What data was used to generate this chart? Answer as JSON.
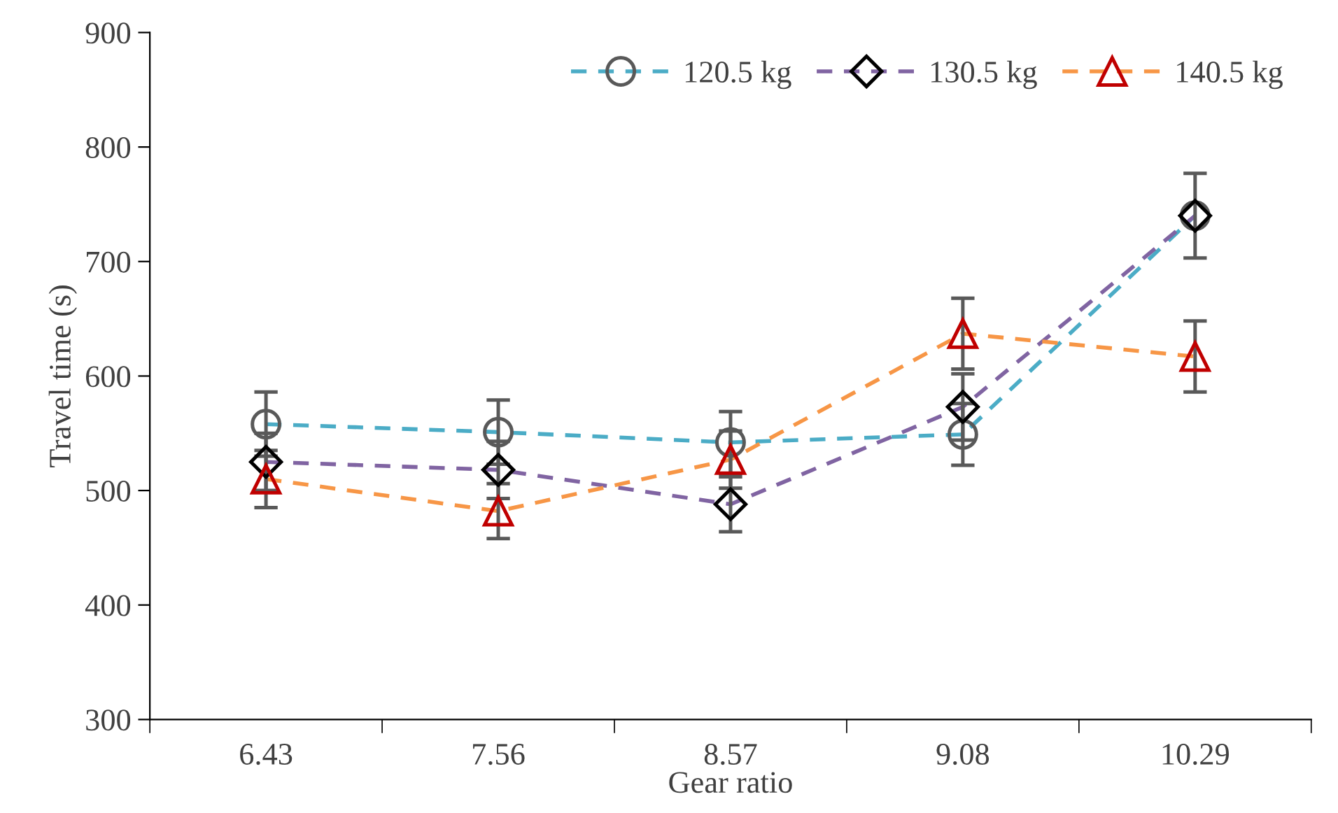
{
  "chart_data": {
    "type": "line",
    "xlabel": "Gear ratio",
    "ylabel": "Travel time (s)",
    "categories": [
      "6.43",
      "7.56",
      "8.57",
      "9.08",
      "10.29"
    ],
    "ylim": [
      300,
      900
    ],
    "yticks": [
      300,
      400,
      500,
      600,
      700,
      800,
      900
    ],
    "grid": false,
    "legend": "top right",
    "line_style": "dashed",
    "series": [
      {
        "name": "120.5 kg",
        "color": "#4bacc6",
        "colors": [
          "#595959",
          "#595959",
          "#595959",
          "#595959",
          "#595959"
        ],
        "marker": "circle",
        "values": [
          558,
          551,
          542,
          549,
          740
        ],
        "errors": [
          28,
          28,
          27,
          27,
          null
        ]
      },
      {
        "name": "130.5 kg",
        "color": "#8064a2",
        "colors": [
          "#000000",
          "#000000",
          "#000000",
          "#000000",
          "#000000"
        ],
        "marker": "diamond",
        "values": [
          525,
          518,
          488,
          573,
          740
        ],
        "errors": [
          25,
          25,
          24,
          29,
          37
        ]
      },
      {
        "name": "140.5 kg",
        "color": "#f79646",
        "colors": [
          "#c00000",
          "#c00000",
          "#c00000",
          "#c00000",
          "#c00000"
        ],
        "marker": "triangle",
        "values": [
          510,
          482,
          527,
          637,
          617
        ],
        "errors": [
          25,
          24,
          25,
          31,
          31
        ]
      }
    ]
  }
}
